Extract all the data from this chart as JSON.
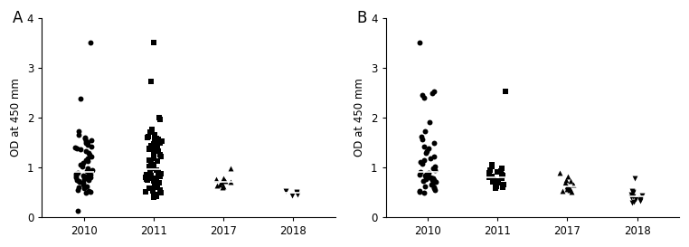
{
  "panel_A_label": "A",
  "panel_B_label": "B",
  "ylabel": "OD at 450 mm",
  "ylim": [
    0,
    4
  ],
  "yticks": [
    0,
    1,
    2,
    3,
    4
  ],
  "years": [
    "2010",
    "2011",
    "2017",
    "2018"
  ],
  "markers": [
    "o",
    "s",
    "^",
    "v"
  ],
  "background_color": "#ffffff",
  "point_color": "black",
  "point_size": 18,
  "alpha": 1.0,
  "A_2010": [
    3.5,
    2.37,
    1.72,
    1.65,
    1.6,
    1.57,
    1.54,
    1.52,
    1.5,
    1.48,
    1.45,
    1.42,
    1.4,
    1.38,
    1.35,
    1.32,
    1.28,
    1.25,
    1.22,
    1.18,
    1.15,
    1.12,
    1.08,
    1.05,
    1.02,
    0.98,
    0.95,
    0.92,
    0.9,
    0.88,
    0.87,
    0.86,
    0.85,
    0.84,
    0.83,
    0.82,
    0.81,
    0.8,
    0.79,
    0.78,
    0.77,
    0.76,
    0.75,
    0.74,
    0.72,
    0.7,
    0.68,
    0.65,
    0.62,
    0.6,
    0.58,
    0.55,
    0.52,
    0.5,
    0.48,
    0.12
  ],
  "A_2011": [
    3.5,
    2.72,
    2.0,
    1.95,
    1.75,
    1.7,
    1.65,
    1.62,
    1.6,
    1.58,
    1.56,
    1.54,
    1.52,
    1.5,
    1.48,
    1.46,
    1.44,
    1.42,
    1.4,
    1.38,
    1.35,
    1.32,
    1.28,
    1.25,
    1.22,
    1.18,
    1.15,
    1.12,
    1.08,
    1.05,
    1.02,
    0.98,
    0.95,
    0.92,
    0.9,
    0.88,
    0.87,
    0.86,
    0.85,
    0.84,
    0.83,
    0.82,
    0.81,
    0.8,
    0.79,
    0.78,
    0.77,
    0.76,
    0.74,
    0.72,
    0.7,
    0.68,
    0.65,
    0.62,
    0.6,
    0.58,
    0.55,
    0.52,
    0.5,
    0.48,
    0.46,
    0.44,
    0.42,
    0.4
  ],
  "A_2017": [
    0.97,
    0.78,
    0.76,
    0.74,
    0.72,
    0.7,
    0.68,
    0.66,
    0.64,
    0.62,
    0.6
  ],
  "A_2018": [
    0.52,
    0.5,
    0.48,
    0.46,
    0.44
  ],
  "B_2010": [
    3.5,
    2.52,
    2.48,
    2.44,
    2.4,
    1.9,
    1.72,
    1.62,
    1.55,
    1.48,
    1.42,
    1.38,
    1.32,
    1.28,
    1.22,
    1.18,
    1.14,
    1.1,
    1.06,
    1.02,
    0.98,
    0.94,
    0.91,
    0.89,
    0.87,
    0.85,
    0.83,
    0.81,
    0.8,
    0.79,
    0.78,
    0.77,
    0.76,
    0.75,
    0.74,
    0.72,
    0.7,
    0.68,
    0.65,
    0.62,
    0.6,
    0.58,
    0.55,
    0.52,
    0.5,
    0.48
  ],
  "B_2011": [
    2.52,
    1.05,
    1.02,
    0.98,
    0.95,
    0.92,
    0.9,
    0.88,
    0.85,
    0.83,
    0.81,
    0.8,
    0.78,
    0.76,
    0.74,
    0.72,
    0.7,
    0.68,
    0.66,
    0.64,
    0.62,
    0.6,
    0.58
  ],
  "B_2017": [
    0.88,
    0.82,
    0.75,
    0.72,
    0.68,
    0.65,
    0.62,
    0.6,
    0.58,
    0.56,
    0.54,
    0.52,
    0.5
  ],
  "B_2018": [
    0.78,
    0.52,
    0.5,
    0.48,
    0.46,
    0.44,
    0.42,
    0.4,
    0.38,
    0.36,
    0.34,
    0.32,
    0.3,
    0.28
  ]
}
